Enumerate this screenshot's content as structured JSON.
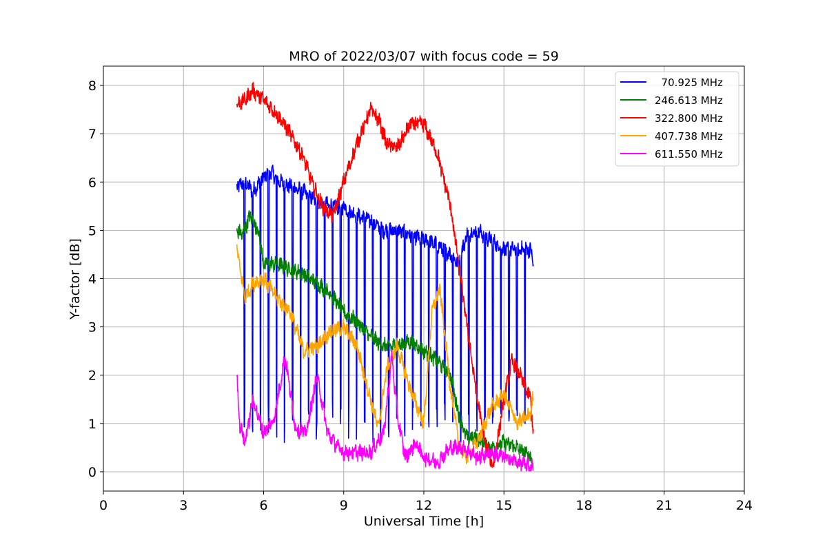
{
  "chart_data": {
    "type": "line",
    "title": "MRO of 2022/03/07 with focus code = 59",
    "xlabel": "Universal Time [h]",
    "ylabel": "Y-factor [dB]",
    "xlim": [
      0,
      24
    ],
    "ylim": [
      -0.4,
      8.4
    ],
    "xticks": [
      0,
      3,
      6,
      9,
      12,
      15,
      18,
      21,
      24
    ],
    "yticks": [
      0,
      1,
      2,
      3,
      4,
      5,
      6,
      7,
      8
    ],
    "grid": true,
    "legend_position": "top-right",
    "series": [
      {
        "name": "  70.925 MHz",
        "color": "#0000ff",
        "dips": true,
        "dip_spacing_h": 0.3,
        "dip_min": 0.6,
        "x": [
          5.0,
          5.3,
          5.6,
          6.0,
          6.3,
          6.6,
          7.0,
          7.5,
          8.0,
          8.5,
          9.0,
          9.5,
          10.0,
          10.5,
          11.0,
          11.5,
          12.0,
          12.5,
          13.0,
          13.3,
          13.6,
          14.0,
          14.5,
          15.0,
          15.5,
          16.0,
          16.1
        ],
        "y": [
          5.9,
          6.0,
          5.8,
          6.1,
          6.2,
          6.0,
          5.9,
          5.8,
          5.6,
          5.5,
          5.5,
          5.3,
          5.2,
          5.0,
          5.0,
          4.9,
          4.8,
          4.7,
          4.5,
          4.3,
          4.9,
          5.0,
          4.8,
          4.6,
          4.6,
          4.6,
          4.3
        ]
      },
      {
        "name": "246.613 MHz",
        "color": "#008000",
        "x": [
          5.0,
          5.2,
          5.5,
          5.8,
          6.0,
          6.5,
          7.0,
          7.5,
          8.0,
          8.5,
          9.0,
          9.5,
          10.0,
          10.5,
          11.0,
          11.5,
          12.0,
          12.5,
          13.0,
          13.3,
          13.6,
          14.0,
          14.5,
          15.0,
          15.5,
          16.0,
          16.1
        ],
        "y": [
          5.0,
          4.9,
          5.3,
          5.0,
          4.3,
          4.3,
          4.2,
          4.1,
          3.9,
          3.7,
          3.3,
          3.1,
          2.8,
          2.6,
          2.6,
          2.7,
          2.5,
          2.3,
          2.0,
          1.2,
          0.7,
          0.7,
          0.5,
          0.6,
          0.5,
          0.3,
          0.2
        ]
      },
      {
        "name": "322.800 MHz",
        "color": "#ff0000",
        "x": [
          5.0,
          5.3,
          5.6,
          6.0,
          6.5,
          7.0,
          7.5,
          7.8,
          8.2,
          8.6,
          9.0,
          9.5,
          10.0,
          10.3,
          10.6,
          11.0,
          11.5,
          12.0,
          12.5,
          13.0,
          13.5,
          14.0,
          14.3,
          14.6,
          15.0,
          15.3,
          15.6,
          16.0,
          16.1
        ],
        "y": [
          7.6,
          7.7,
          7.9,
          7.7,
          7.4,
          7.0,
          6.5,
          6.0,
          5.5,
          5.3,
          6.0,
          6.8,
          7.5,
          7.3,
          6.8,
          6.7,
          7.2,
          7.2,
          6.6,
          5.5,
          3.5,
          1.5,
          0.6,
          0.1,
          1.5,
          2.3,
          2.0,
          1.5,
          0.8
        ]
      },
      {
        "name": "407.738 MHz",
        "color": "#ffa500",
        "x": [
          5.0,
          5.3,
          5.6,
          6.0,
          6.5,
          7.0,
          7.5,
          8.0,
          8.5,
          9.0,
          9.5,
          10.0,
          10.3,
          10.6,
          11.0,
          11.5,
          12.0,
          12.3,
          12.6,
          13.0,
          13.3,
          13.6,
          14.0,
          14.5,
          15.0,
          15.5,
          16.0,
          16.1
        ],
        "y": [
          4.6,
          3.6,
          3.9,
          4.0,
          3.6,
          3.3,
          2.5,
          2.6,
          2.9,
          3.0,
          2.6,
          1.5,
          0.9,
          2.1,
          2.6,
          1.7,
          1.0,
          3.3,
          3.8,
          1.7,
          0.6,
          0.3,
          0.6,
          1.3,
          1.6,
          1.0,
          1.2,
          1.6
        ]
      },
      {
        "name": "611.550 MHz",
        "color": "#ff00ff",
        "x": [
          5.0,
          5.1,
          5.3,
          5.6,
          6.0,
          6.4,
          6.8,
          7.2,
          7.6,
          8.0,
          8.4,
          8.8,
          9.0,
          9.5,
          10.0,
          10.5,
          10.8,
          11.0,
          11.3,
          11.7,
          12.0,
          12.5,
          13.0,
          13.5,
          14.0,
          14.5,
          15.0,
          15.5,
          16.0,
          16.1
        ],
        "y": [
          2.0,
          1.0,
          0.6,
          1.5,
          0.8,
          1.1,
          2.4,
          0.9,
          0.8,
          2.0,
          0.8,
          0.5,
          0.4,
          0.4,
          0.4,
          0.8,
          2.4,
          1.2,
          0.3,
          0.6,
          0.3,
          0.2,
          0.5,
          0.5,
          0.3,
          0.4,
          0.3,
          0.2,
          0.1,
          0.1
        ]
      }
    ]
  }
}
